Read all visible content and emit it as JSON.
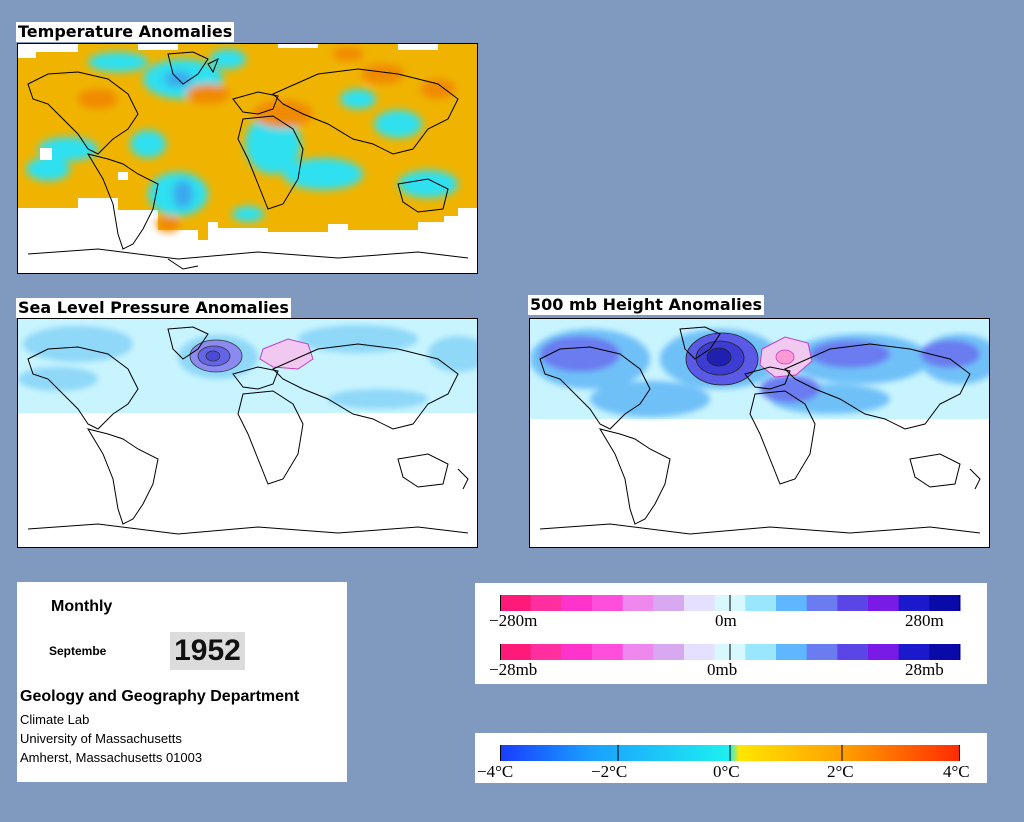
{
  "panels": {
    "temperature": {
      "title": "Temperature Anomalies"
    },
    "slp": {
      "title": "Sea Level Pressure Anomalies"
    },
    "height500": {
      "title": "500 mb Height Anomalies"
    }
  },
  "info": {
    "period": "Monthly",
    "month": "Septembe",
    "year": "1952",
    "department": "Geology and Geography Department",
    "lab": "Climate Lab",
    "university": "University of Massachusetts",
    "address": "Amherst, Massachusetts 01003"
  },
  "scales": {
    "height": {
      "labels": [
        "−280m",
        "0m",
        "280m"
      ],
      "colors": [
        "#ff1a7a",
        "#ff2fa0",
        "#ff33cc",
        "#ff4ddc",
        "#ee88ee",
        "#d8a8f0",
        "#e6e0ff",
        "#d8f8ff",
        "#99e6ff",
        "#5fb8ff",
        "#6a7cf0",
        "#5a46e6",
        "#7a1ae6",
        "#1a1acc",
        "#0a0aa8"
      ]
    },
    "pressure": {
      "labels": [
        "−28mb",
        "0mb",
        "28mb"
      ],
      "colors": [
        "#ff1a7a",
        "#ff2fa0",
        "#ff33cc",
        "#ff4ddc",
        "#ee88ee",
        "#d8a8f0",
        "#e6e0ff",
        "#d8f8ff",
        "#99e6ff",
        "#5fb8ff",
        "#6a7cf0",
        "#5a46e6",
        "#7a1ae6",
        "#1a1acc",
        "#0a0aa8"
      ]
    },
    "temperature": {
      "labels": [
        "−4°C",
        "−2°C",
        "0°C",
        "2°C",
        "4°C"
      ],
      "stops": [
        "#1a3cff",
        "#1aa0ff",
        "#1ef0f0",
        "#ffe600",
        "#ff9a00",
        "#ff2a00"
      ]
    }
  },
  "palette": {
    "background": "#7f99bf",
    "warm": "#f0b400",
    "warm_strong": "#f08a00",
    "cool": "#2de0f0",
    "cool_strong": "#3aa8ee",
    "slp_light": "#c8f4ff",
    "slp_mid": "#8fd8f8",
    "slp_low": "#6464e6",
    "slp_high": "#f0c8f0"
  }
}
